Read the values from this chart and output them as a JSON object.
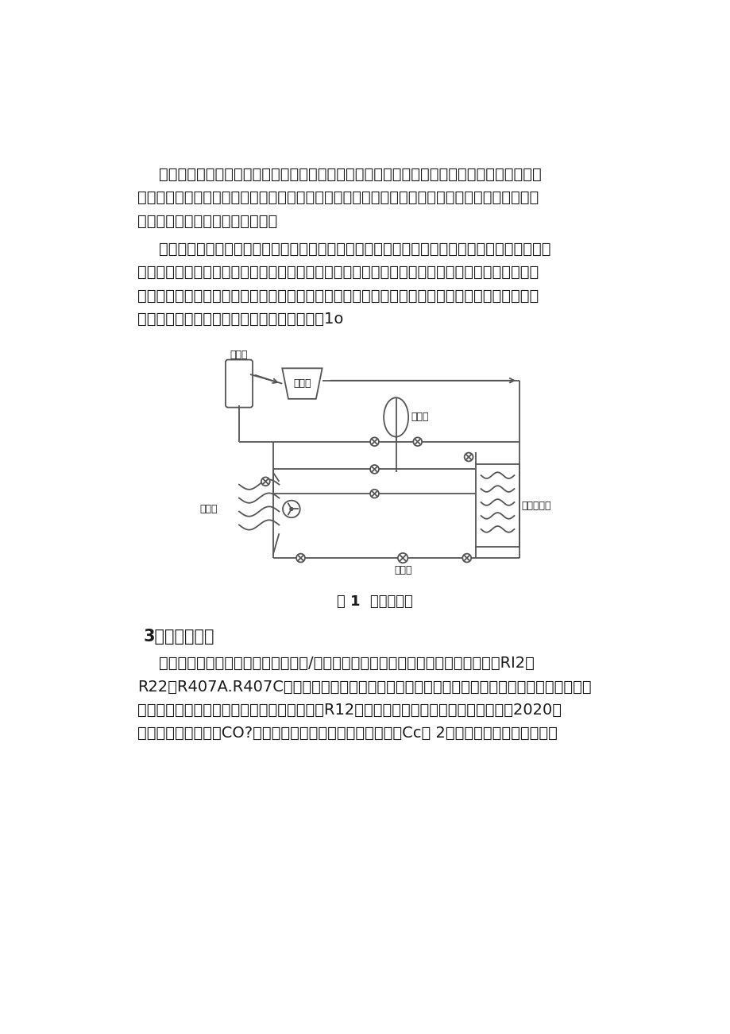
{
  "bg_color": "#ffffff",
  "text_color": "#1a1a1a",
  "diagram_color": "#555555",
  "para1_line1": "由于热泵系统采取冬夏季双工况运行，两季的运行工况及冷热负荷不同，造成系统中零部件的",
  "para1_line2": "配置及工质的填充量不同。通常冬季负荷小，夏季负荷大。系统中回收罐的设计就是为了在冬季低",
  "para1_line3": "负荷运行时回收夏季多余的工质。",
  "para2_line1": "本设计采用两组證发器并联设计，通过切换两组證发器来适应冬夏季的不同工况。夏季负荷大，",
  "para2_line2": "同时使用两组證发器。冬季负荷小，使用一组證发器，另一组作为回收罐使用，这样很好地满足了",
  "para2_line3": "冬夏季工况的差异，实现了證发器最大效率的使用。證发器和储液器一体化设计，不但减少了占地",
  "para2_line4": "空间，而且节约了材料成本。其技术原理见图1o",
  "fig_caption": "图 1  技术原理图",
  "section_title": "3．技术创新点",
  "para3_line1": "普通的空气能热泵和地源热泵等制冷/供热设备都曾先后使用氟利昂作为制冷剂，如RI2、",
  "para3_line2": "R22、R407A.R407C等。氟利昂制冷剂被证明对环境有破坏作用，一是对大气臭氧层的破坏，二",
  "para3_line3": "是具有温室效应。根据《京都议定书》要求，R12已经停止使用，其他氟利昂类制冷剂到2020年",
  "para3_line4": "已停止使用。因此，CO?制冷剂的应用显得十分及时和重要。Cc） 2制冷剂在热泵系统中作为工",
  "label_chuye": "储液器",
  "label_yasuoji": "压缩机",
  "label_huishouguan": "回收罐",
  "label_qiti": "气体冷却器",
  "label_zhengfaqi": "證发器",
  "label_pengzhangfa": "膨脹阀",
  "font_size_body": 14,
  "font_size_section": 15,
  "font_size_label": 9
}
